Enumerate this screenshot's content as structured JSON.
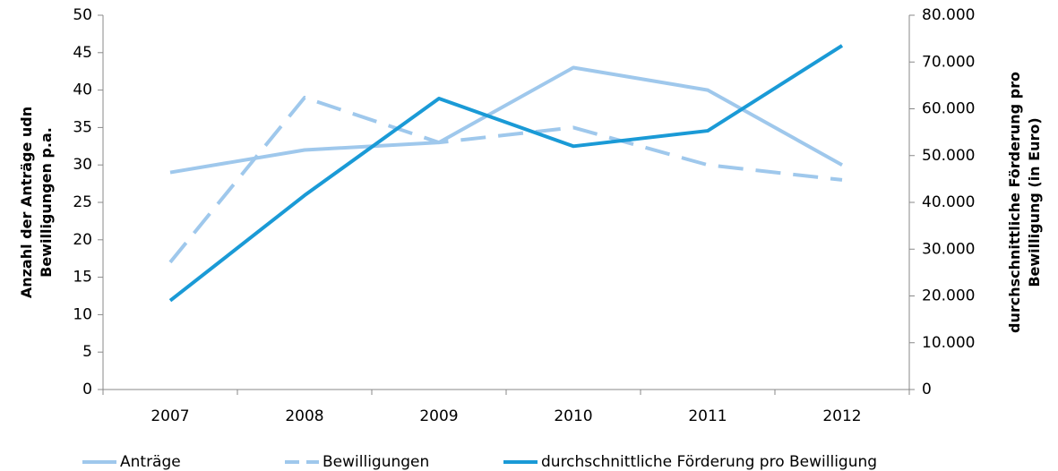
{
  "chart_data": {
    "type": "line",
    "categories": [
      "2007",
      "2008",
      "2009",
      "2010",
      "2011",
      "2012"
    ],
    "y_label": [
      "Anzahl der Anträge udn",
      "Bewilligungen p.a."
    ],
    "y2_label": [
      "durchschnittliche Förderung pro",
      "Bewilligung (in Euro)"
    ],
    "ylim": [
      0,
      50
    ],
    "yticks": [
      0,
      5,
      10,
      15,
      20,
      25,
      30,
      35,
      40,
      45,
      50
    ],
    "y2lim": [
      0,
      80000
    ],
    "y2ticks": [
      {
        "value": 0,
        "label": "0"
      },
      {
        "value": 10000,
        "label": "10.000"
      },
      {
        "value": 20000,
        "label": "20.000"
      },
      {
        "value": 30000,
        "label": "30.000"
      },
      {
        "value": 40000,
        "label": "40.000"
      },
      {
        "value": 50000,
        "label": "50.000"
      },
      {
        "value": 60000,
        "label": "60.000"
      },
      {
        "value": 70000,
        "label": "70.000"
      },
      {
        "value": 80000,
        "label": "80.000"
      }
    ],
    "grid": false,
    "legend": "bottom",
    "series": [
      {
        "name": "Anträge",
        "color": "#9fc8ec",
        "dash": false,
        "values": [
          29,
          32,
          33,
          43,
          40,
          30
        ]
      },
      {
        "name": "Bewilligungen",
        "color": "#9fc8ec",
        "dash": true,
        "values": [
          17,
          39,
          33,
          35,
          30,
          28
        ]
      },
      {
        "name": "durchschnittliche Förderung pro Bewilligung",
        "color": "#1a9ad6",
        "dash": false,
        "axis": "y2",
        "values": [
          19000,
          41500,
          62200,
          52000,
          55300,
          73500
        ]
      }
    ]
  }
}
